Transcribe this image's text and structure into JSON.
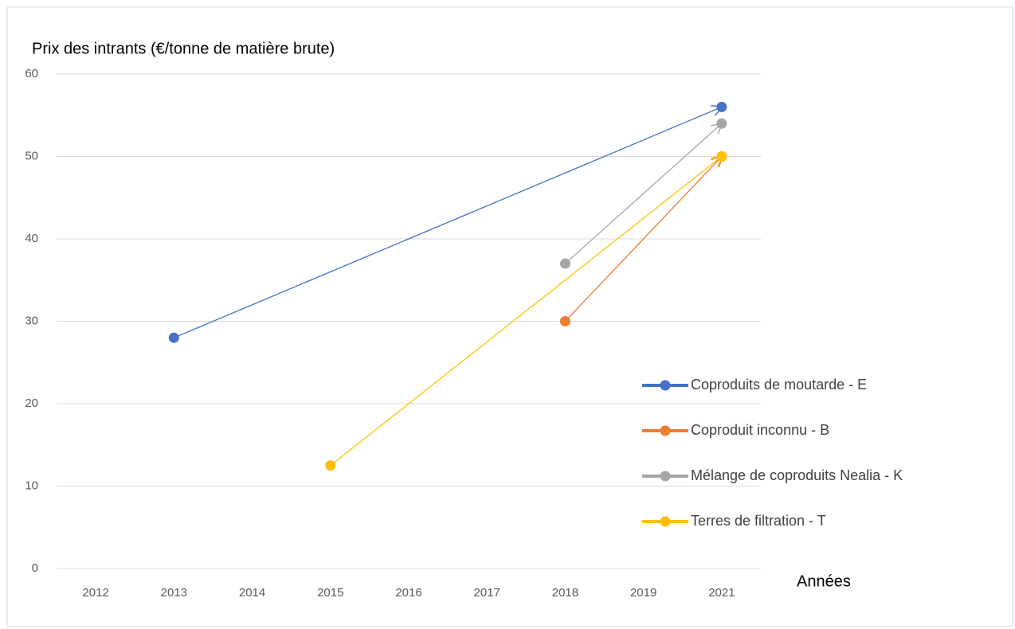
{
  "chart_data": {
    "type": "line",
    "y_label": "Prix des intrants (€/tonne de matière brute)",
    "x_label": "Années",
    "categories": [
      "2012",
      "2013",
      "2014",
      "2015",
      "2016",
      "2017",
      "2018",
      "2019",
      "2021"
    ],
    "ylim": [
      0,
      60
    ],
    "yticks": [
      0,
      10,
      20,
      30,
      40,
      50,
      60
    ],
    "grid": true,
    "series": [
      {
        "name": "Coproduits de moutarde - E",
        "color": "#4472c4",
        "x": [
          "2013",
          "2021"
        ],
        "values": [
          28,
          56
        ]
      },
      {
        "name": "Coproduit inconnu - B",
        "color": "#ed7d31",
        "x": [
          "2018",
          "2021"
        ],
        "values": [
          30,
          50
        ]
      },
      {
        "name": "Mélange de coproduits Nealia - K",
        "color": "#a5a5a5",
        "x": [
          "2018",
          "2021"
        ],
        "values": [
          37,
          54
        ]
      },
      {
        "name": "Terres de filtration - T",
        "color": "#ffc000",
        "x": [
          "2015",
          "2021"
        ],
        "values": [
          12.5,
          50
        ]
      }
    ]
  }
}
